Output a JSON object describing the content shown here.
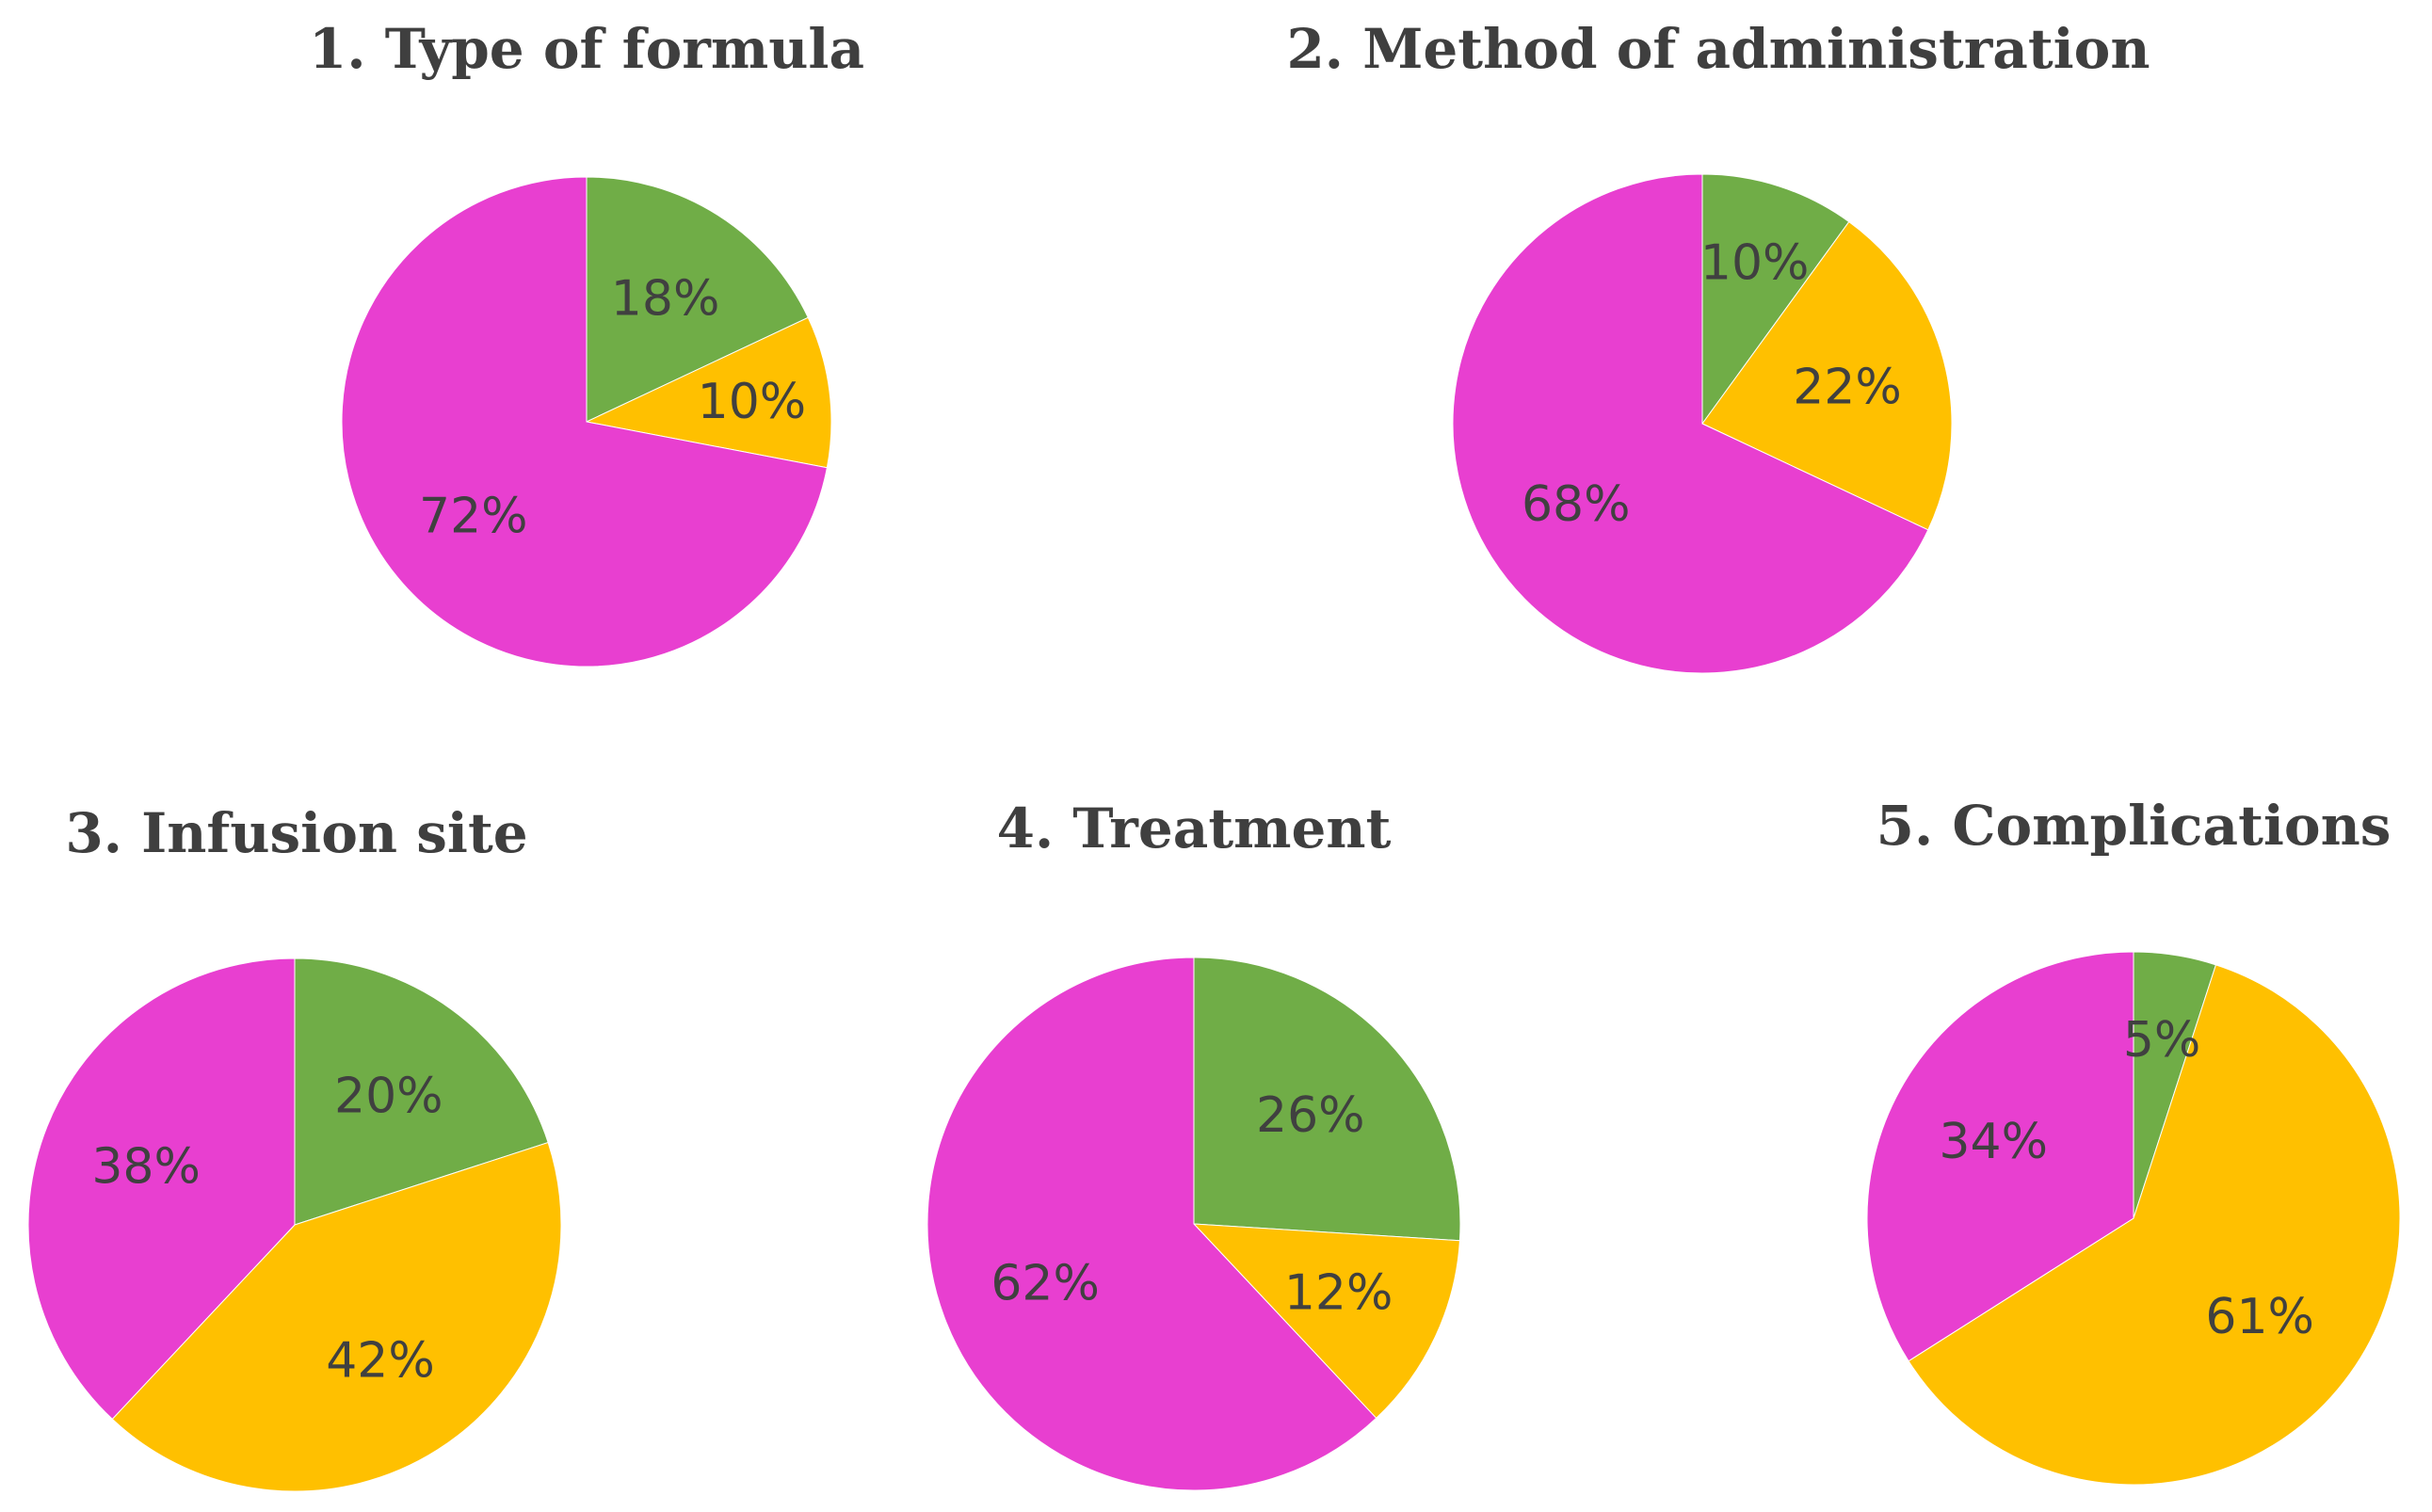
{
  "colors": {
    "green": "#70ad47",
    "orange": "#ffc000",
    "magenta": "#e83fd0"
  },
  "chart_data": [
    {
      "type": "pie",
      "title": "1. Type of formula",
      "slices": [
        {
          "value": 18,
          "label": "18%",
          "color": "#70ad47"
        },
        {
          "value": 10,
          "label": "10%",
          "color": "#ffc000"
        },
        {
          "value": 72,
          "label": "72%",
          "color": "#e83fd0"
        }
      ]
    },
    {
      "type": "pie",
      "title": "2. Method of administration",
      "slices": [
        {
          "value": 10,
          "label": "10%",
          "color": "#70ad47"
        },
        {
          "value": 22,
          "label": "22%",
          "color": "#ffc000"
        },
        {
          "value": 68,
          "label": "68%",
          "color": "#e83fd0"
        }
      ]
    },
    {
      "type": "pie",
      "title": "3. Infusion site",
      "slices": [
        {
          "value": 20,
          "label": "20%",
          "color": "#70ad47"
        },
        {
          "value": 42,
          "label": "42%",
          "color": "#ffc000"
        },
        {
          "value": 38,
          "label": "38%",
          "color": "#e83fd0"
        }
      ]
    },
    {
      "type": "pie",
      "title": "4. Treatment",
      "slices": [
        {
          "value": 26,
          "label": "26%",
          "color": "#70ad47"
        },
        {
          "value": 12,
          "label": "12%",
          "color": "#ffc000"
        },
        {
          "value": 62,
          "label": "62%",
          "color": "#e83fd0"
        }
      ]
    },
    {
      "type": "pie",
      "title": "5. Complications",
      "slices": [
        {
          "value": 5,
          "label": "5%",
          "color": "#70ad47"
        },
        {
          "value": 61,
          "label": "61%",
          "color": "#ffc000"
        },
        {
          "value": 34,
          "label": "34%",
          "color": "#e83fd0"
        }
      ]
    }
  ]
}
